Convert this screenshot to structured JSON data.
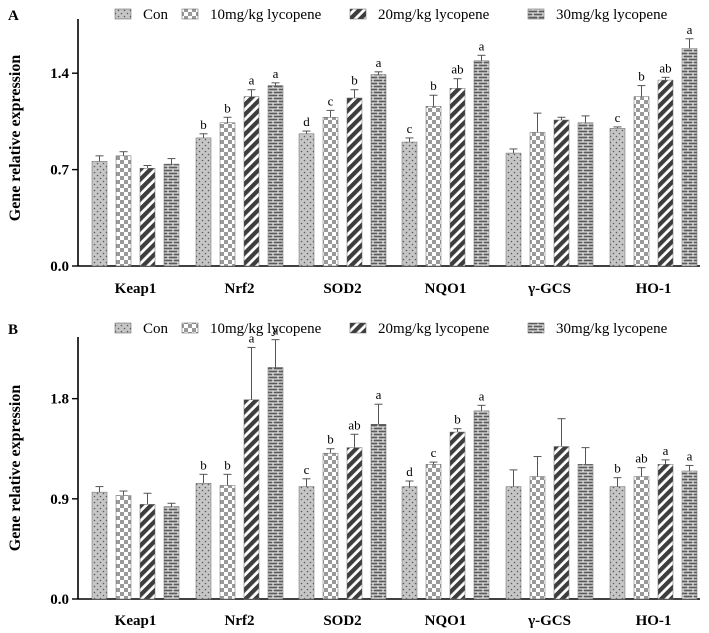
{
  "chart_data": [
    {
      "type": "bar",
      "panel_label": "A",
      "ylabel": "Gene relative expression",
      "ylim": [
        0,
        1.75
      ],
      "yticks": [
        0.0,
        0.7,
        1.4
      ],
      "ytick_labels": [
        "0.0",
        "0.7",
        "1.4"
      ],
      "categories": [
        "Keap1",
        "Nrf2",
        "SOD2",
        "NQO1",
        "γ-GCS",
        "HO-1"
      ],
      "legend_position": "top",
      "series": [
        {
          "name": "Con",
          "values": [
            0.76,
            0.93,
            0.96,
            0.9,
            0.82,
            1.0
          ],
          "errors": [
            0.04,
            0.03,
            0.02,
            0.03,
            0.03,
            0.01
          ],
          "letters": [
            "",
            "b",
            "d",
            "c",
            "",
            "c"
          ]
        },
        {
          "name": "10mg/kg lycopene",
          "values": [
            0.8,
            1.04,
            1.08,
            1.16,
            0.97,
            1.23
          ],
          "errors": [
            0.03,
            0.04,
            0.05,
            0.08,
            0.14,
            0.08
          ],
          "letters": [
            "",
            "b",
            "c",
            "b",
            "",
            "b"
          ]
        },
        {
          "name": "20mg/kg lycopene",
          "values": [
            0.71,
            1.23,
            1.22,
            1.29,
            1.06,
            1.35
          ],
          "errors": [
            0.02,
            0.05,
            0.06,
            0.07,
            0.02,
            0.02
          ],
          "letters": [
            "",
            "a",
            "b",
            "ab",
            "",
            "ab"
          ]
        },
        {
          "name": "30mg/kg lycopene",
          "values": [
            0.74,
            1.31,
            1.39,
            1.49,
            1.04,
            1.58
          ],
          "errors": [
            0.04,
            0.02,
            0.02,
            0.04,
            0.05,
            0.07
          ],
          "letters": [
            "",
            "a",
            "a",
            "a",
            "",
            "a"
          ]
        }
      ]
    },
    {
      "type": "bar",
      "panel_label": "B",
      "ylabel": "Gene relative expression",
      "ylim": [
        0,
        2.3
      ],
      "yticks": [
        0.0,
        0.9,
        1.8
      ],
      "ytick_labels": [
        "0.0",
        "0.9",
        "1.8"
      ],
      "categories": [
        "Keap1",
        "Nrf2",
        "SOD2",
        "NQO1",
        "γ-GCS",
        "HO-1"
      ],
      "legend_position": "top",
      "series": [
        {
          "name": "Con",
          "values": [
            0.96,
            1.04,
            1.01,
            1.01,
            1.01,
            1.01
          ],
          "errors": [
            0.05,
            0.08,
            0.07,
            0.05,
            0.15,
            0.08
          ],
          "letters": [
            "",
            "b",
            "c",
            "d",
            "",
            "b"
          ]
        },
        {
          "name": "10mg/kg lycopene",
          "values": [
            0.93,
            1.02,
            1.31,
            1.21,
            1.1,
            1.1
          ],
          "errors": [
            0.04,
            0.1,
            0.04,
            0.02,
            0.18,
            0.08
          ],
          "letters": [
            "",
            "b",
            "b",
            "c",
            "",
            "ab"
          ]
        },
        {
          "name": "20mg/kg lycopene",
          "values": [
            0.85,
            1.79,
            1.36,
            1.5,
            1.37,
            1.21
          ],
          "errors": [
            0.1,
            0.47,
            0.12,
            0.03,
            0.25,
            0.04
          ],
          "letters": [
            "",
            "a",
            "ab",
            "b",
            "",
            "a"
          ]
        },
        {
          "name": "30mg/kg lycopene",
          "values": [
            0.83,
            2.08,
            1.57,
            1.69,
            1.21,
            1.15
          ],
          "errors": [
            0.03,
            0.25,
            0.18,
            0.05,
            0.15,
            0.05
          ],
          "letters": [
            "",
            "a",
            "a",
            "a",
            "",
            "a"
          ]
        }
      ]
    }
  ]
}
